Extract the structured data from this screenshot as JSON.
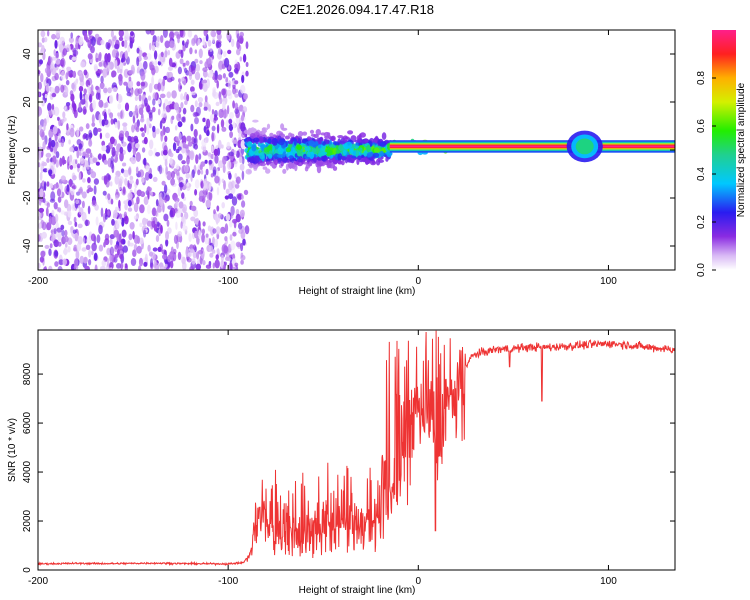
{
  "title": "C2E1.2026.094.17.47.R18",
  "chart_data": [
    {
      "type": "heatmap",
      "title": "C2E1.2026.094.17.47.R18",
      "xlabel": "Height of straight line (km)",
      "ylabel": "Frequency (Hz)",
      "xlim": [
        -200,
        135
      ],
      "ylim": [
        -50,
        50
      ],
      "xticks": [
        -200,
        -100,
        0,
        100
      ],
      "xtick_labels": [
        "-200",
        "-100",
        "0",
        "100"
      ],
      "yticks": [
        -40,
        -20,
        0,
        20,
        40
      ],
      "ytick_labels": [
        "-40",
        "-20",
        "0",
        "20",
        "40"
      ],
      "colorbar": {
        "label": "Normalized spectral amplitude",
        "range": [
          0,
          1
        ],
        "ticks": [
          0.0,
          0.2,
          0.4,
          0.6,
          0.8
        ],
        "tick_labels": [
          "0.0",
          "0.2",
          "0.4",
          "0.6",
          "0.8"
        ]
      },
      "regions": [
        {
          "name": "noise",
          "x_range": [
            -200,
            -90
          ],
          "freq_range": [
            -50,
            50
          ],
          "amplitude": 0.1
        },
        {
          "name": "turbulent",
          "x_range": [
            -90,
            -15
          ],
          "freq_center": 0,
          "freq_spread": 12,
          "amplitude": 0.35
        },
        {
          "name": "transition",
          "x_range": [
            -15,
            30
          ],
          "freq_center": 1.5,
          "freq_spread": 2,
          "amplitude": 0.8
        },
        {
          "name": "tone",
          "x_range": [
            30,
            135
          ],
          "freq_center": 1.5,
          "freq_spread": 1,
          "amplitude": 1.0
        },
        {
          "name": "blob",
          "x_range": [
            78,
            97
          ],
          "freq_center": 1.5,
          "freq_spread": 3,
          "amplitude": 0.55
        }
      ]
    },
    {
      "type": "line",
      "xlabel": "Height of straight line (km)",
      "ylabel": "SNR (10 * v/v)",
      "xlim": [
        -200,
        135
      ],
      "ylim": [
        0,
        9800
      ],
      "xticks": [
        -200,
        -100,
        0,
        100
      ],
      "xtick_labels": [
        "-200",
        "-100",
        "0",
        "100"
      ],
      "yticks": [
        0,
        2000,
        4000,
        6000,
        8000
      ],
      "ytick_labels": [
        "0",
        "2000",
        "4000",
        "6000",
        "8000"
      ],
      "color": "#ee3333",
      "series": [
        {
          "name": "SNR",
          "x": [
            -200,
            -180,
            -160,
            -140,
            -120,
            -100,
            -92,
            -88,
            -85,
            -80,
            -75,
            -70,
            -65,
            -60,
            -55,
            -50,
            -45,
            -40,
            -35,
            -30,
            -25,
            -20,
            -18,
            -15,
            -12,
            -10,
            -5,
            0,
            5,
            8,
            10,
            12,
            15,
            20,
            25,
            28,
            30,
            35,
            40,
            50,
            60,
            70,
            80,
            90,
            100,
            110,
            120,
            135
          ],
          "y": [
            250,
            270,
            260,
            280,
            260,
            250,
            300,
            700,
            2400,
            2000,
            1500,
            1800,
            1500,
            1600,
            1700,
            1700,
            1800,
            1900,
            2000,
            1800,
            2000,
            2200,
            3500,
            3800,
            3000,
            4500,
            6000,
            7000,
            6500,
            6000,
            4500,
            4800,
            6800,
            7600,
            8300,
            8700,
            8800,
            8900,
            9000,
            9050,
            9100,
            9100,
            9150,
            9200,
            9250,
            9200,
            9100,
            9000
          ]
        }
      ],
      "spikes": [
        {
          "x": 9,
          "y": 1600
        },
        {
          "x": 65,
          "y": 6900
        },
        {
          "x": 48,
          "y": 8300
        }
      ],
      "envelopes": [
        {
          "x_range": [
            -88,
            -20
          ],
          "min": 400,
          "max": 4400
        },
        {
          "x_range": [
            -20,
            0
          ],
          "min": 2000,
          "max": 9500
        },
        {
          "x_range": [
            0,
            25
          ],
          "min": 5000,
          "max": 9800
        }
      ]
    }
  ]
}
